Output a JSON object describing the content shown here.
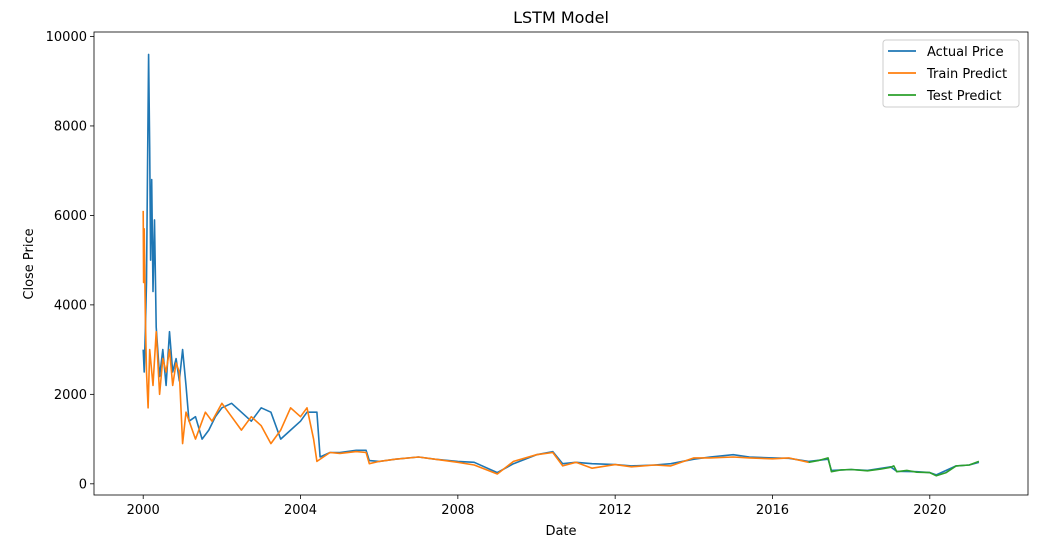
{
  "chart_data": {
    "type": "line",
    "title": "LSTM Model",
    "xlabel": "Date",
    "ylabel": "Close Price",
    "xlim": [
      "1998-10-01",
      "2022-07-01"
    ],
    "ylim": [
      -250,
      10100
    ],
    "x_ticks": [
      {
        "date": "2000-01-01",
        "label": "2000"
      },
      {
        "date": "2004-01-01",
        "label": "2004"
      },
      {
        "date": "2008-01-01",
        "label": "2008"
      },
      {
        "date": "2012-01-01",
        "label": "2012"
      },
      {
        "date": "2016-01-01",
        "label": "2016"
      },
      {
        "date": "2020-01-01",
        "label": "2020"
      }
    ],
    "y_ticks": [
      {
        "value": 0,
        "label": "0"
      },
      {
        "value": 2000,
        "label": "2000"
      },
      {
        "value": 4000,
        "label": "4000"
      },
      {
        "value": 6000,
        "label": "6000"
      },
      {
        "value": 8000,
        "label": "8000"
      },
      {
        "value": 10000,
        "label": "10000"
      }
    ],
    "grid": false,
    "legend_position": "top-right",
    "series": [
      {
        "name": "Actual Price",
        "color": "#1f77b4",
        "points": [
          [
            "2000-01-01",
            3000
          ],
          [
            "2000-01-10",
            2500
          ],
          [
            "2000-01-20",
            3400
          ],
          [
            "2000-02-01",
            4500
          ],
          [
            "2000-02-10",
            7000
          ],
          [
            "2000-02-20",
            9600
          ],
          [
            "2000-03-01",
            7500
          ],
          [
            "2000-03-10",
            5000
          ],
          [
            "2000-03-20",
            6800
          ],
          [
            "2000-04-01",
            4300
          ],
          [
            "2000-04-15",
            5900
          ],
          [
            "2000-05-01",
            3500
          ],
          [
            "2000-06-01",
            2400
          ],
          [
            "2000-07-01",
            3000
          ],
          [
            "2000-08-01",
            2200
          ],
          [
            "2000-09-01",
            3400
          ],
          [
            "2000-10-01",
            2500
          ],
          [
            "2000-11-01",
            2800
          ],
          [
            "2000-12-01",
            2300
          ],
          [
            "2001-01-01",
            3000
          ],
          [
            "2001-02-01",
            2200
          ],
          [
            "2001-03-01",
            1400
          ],
          [
            "2001-05-01",
            1500
          ],
          [
            "2001-07-01",
            1000
          ],
          [
            "2001-09-01",
            1200
          ],
          [
            "2001-11-01",
            1500
          ],
          [
            "2002-01-01",
            1700
          ],
          [
            "2002-04-01",
            1800
          ],
          [
            "2002-07-01",
            1600
          ],
          [
            "2002-10-01",
            1400
          ],
          [
            "2003-01-01",
            1700
          ],
          [
            "2003-04-01",
            1600
          ],
          [
            "2003-07-01",
            1000
          ],
          [
            "2003-10-01",
            1200
          ],
          [
            "2004-01-01",
            1400
          ],
          [
            "2004-03-01",
            1600
          ],
          [
            "2004-06-01",
            1600
          ],
          [
            "2004-07-01",
            600
          ],
          [
            "2004-10-01",
            700
          ],
          [
            "2005-01-01",
            700
          ],
          [
            "2005-06-01",
            750
          ],
          [
            "2005-09-01",
            750
          ],
          [
            "2005-10-01",
            520
          ],
          [
            "2006-01-01",
            500
          ],
          [
            "2006-06-01",
            550
          ],
          [
            "2007-01-01",
            600
          ],
          [
            "2007-06-01",
            550
          ],
          [
            "2008-01-01",
            500
          ],
          [
            "2008-06-01",
            480
          ],
          [
            "2009-01-01",
            250
          ],
          [
            "2009-06-01",
            450
          ],
          [
            "2010-01-01",
            650
          ],
          [
            "2010-06-01",
            720
          ],
          [
            "2010-09-01",
            450
          ],
          [
            "2011-01-01",
            480
          ],
          [
            "2011-06-01",
            450
          ],
          [
            "2012-01-01",
            430
          ],
          [
            "2012-06-01",
            400
          ],
          [
            "2013-01-01",
            420
          ],
          [
            "2013-06-01",
            450
          ],
          [
            "2014-01-01",
            550
          ],
          [
            "2014-06-01",
            600
          ],
          [
            "2015-01-01",
            650
          ],
          [
            "2015-06-01",
            600
          ],
          [
            "2016-01-01",
            580
          ],
          [
            "2016-06-01",
            570
          ],
          [
            "2016-12-01",
            500
          ],
          [
            "2017-06-01",
            550
          ],
          [
            "2017-07-01",
            300
          ],
          [
            "2018-01-01",
            320
          ],
          [
            "2018-06-01",
            300
          ],
          [
            "2019-01-01",
            380
          ],
          [
            "2019-03-01",
            280
          ],
          [
            "2019-09-01",
            270
          ],
          [
            "2020-01-01",
            250
          ],
          [
            "2020-03-01",
            200
          ],
          [
            "2020-06-01",
            300
          ],
          [
            "2020-09-01",
            400
          ],
          [
            "2021-01-01",
            420
          ],
          [
            "2021-04-01",
            480
          ]
        ]
      },
      {
        "name": "Train Predict",
        "color": "#ff7f0e",
        "points": [
          [
            "2000-01-01",
            6100
          ],
          [
            "2000-01-05",
            4500
          ],
          [
            "2000-01-10",
            5700
          ],
          [
            "2000-01-20",
            3800
          ],
          [
            "2000-02-01",
            2500
          ],
          [
            "2000-02-15",
            1700
          ],
          [
            "2000-03-01",
            3000
          ],
          [
            "2000-04-01",
            2200
          ],
          [
            "2000-05-01",
            3400
          ],
          [
            "2000-06-01",
            2000
          ],
          [
            "2000-07-01",
            2800
          ],
          [
            "2000-08-01",
            2500
          ],
          [
            "2000-09-01",
            3000
          ],
          [
            "2000-10-01",
            2200
          ],
          [
            "2000-11-01",
            2700
          ],
          [
            "2000-12-01",
            2500
          ],
          [
            "2001-01-01",
            900
          ],
          [
            "2001-02-01",
            1600
          ],
          [
            "2001-05-01",
            1000
          ],
          [
            "2001-08-01",
            1600
          ],
          [
            "2001-10-01",
            1400
          ],
          [
            "2002-01-01",
            1800
          ],
          [
            "2002-04-01",
            1500
          ],
          [
            "2002-07-01",
            1200
          ],
          [
            "2002-10-01",
            1500
          ],
          [
            "2003-01-01",
            1300
          ],
          [
            "2003-04-01",
            900
          ],
          [
            "2003-07-01",
            1200
          ],
          [
            "2003-10-01",
            1700
          ],
          [
            "2004-01-01",
            1500
          ],
          [
            "2004-03-01",
            1700
          ],
          [
            "2004-05-01",
            1000
          ],
          [
            "2004-06-01",
            500
          ],
          [
            "2004-10-01",
            700
          ],
          [
            "2005-01-01",
            680
          ],
          [
            "2005-06-01",
            720
          ],
          [
            "2005-09-01",
            700
          ],
          [
            "2005-10-01",
            450
          ],
          [
            "2006-01-01",
            500
          ],
          [
            "2006-06-01",
            550
          ],
          [
            "2007-01-01",
            600
          ],
          [
            "2007-06-01",
            550
          ],
          [
            "2008-01-01",
            480
          ],
          [
            "2008-06-01",
            420
          ],
          [
            "2009-01-01",
            220
          ],
          [
            "2009-06-01",
            500
          ],
          [
            "2010-01-01",
            650
          ],
          [
            "2010-06-01",
            700
          ],
          [
            "2010-09-01",
            400
          ],
          [
            "2011-01-01",
            480
          ],
          [
            "2011-06-01",
            350
          ],
          [
            "2012-01-01",
            430
          ],
          [
            "2012-06-01",
            380
          ],
          [
            "2013-01-01",
            420
          ],
          [
            "2013-06-01",
            400
          ],
          [
            "2014-01-01",
            580
          ],
          [
            "2014-06-01",
            580
          ],
          [
            "2015-01-01",
            600
          ],
          [
            "2015-06-01",
            580
          ],
          [
            "2016-01-01",
            560
          ],
          [
            "2016-06-01",
            580
          ],
          [
            "2016-12-01",
            480
          ]
        ]
      },
      {
        "name": "Test Predict",
        "color": "#2ca02c",
        "points": [
          [
            "2016-12-01",
            480
          ],
          [
            "2017-03-01",
            520
          ],
          [
            "2017-06-01",
            580
          ],
          [
            "2017-07-01",
            270
          ],
          [
            "2017-10-01",
            310
          ],
          [
            "2018-01-01",
            320
          ],
          [
            "2018-06-01",
            290
          ],
          [
            "2018-10-01",
            330
          ],
          [
            "2019-01-01",
            370
          ],
          [
            "2019-02-01",
            400
          ],
          [
            "2019-03-01",
            270
          ],
          [
            "2019-06-01",
            300
          ],
          [
            "2019-09-01",
            260
          ],
          [
            "2020-01-01",
            250
          ],
          [
            "2020-03-01",
            180
          ],
          [
            "2020-06-01",
            250
          ],
          [
            "2020-09-01",
            400
          ],
          [
            "2021-01-01",
            420
          ],
          [
            "2021-04-01",
            500
          ]
        ]
      }
    ]
  }
}
